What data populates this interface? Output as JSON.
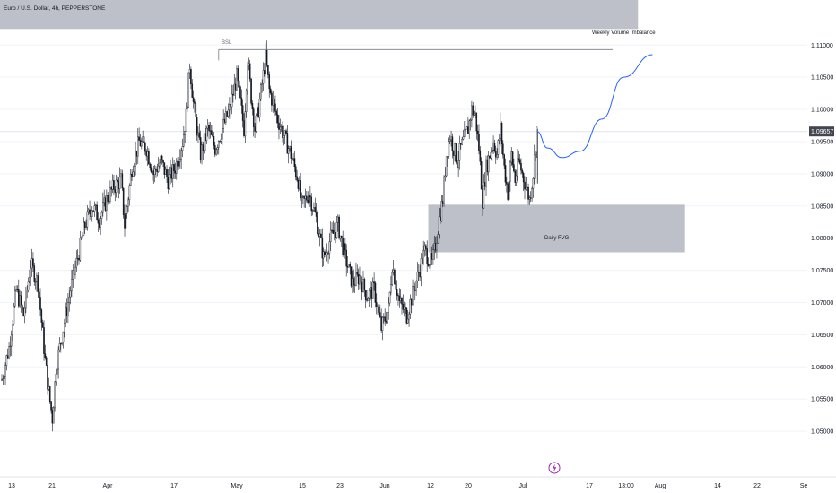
{
  "window": {
    "title": "Euro / U.S. Dollar, 4h, PEPPERSTONE"
  },
  "chart_data": {
    "type": "candlestick",
    "title": "Euro / U.S. Dollar, 4h, PEPPERSTONE",
    "ylim": [
      1.045,
      1.117
    ],
    "y_ticks": [
      "1.11000",
      "1.10500",
      "1.10000",
      "1.09500",
      "1.09000",
      "1.08500",
      "1.08000",
      "1.07500",
      "1.07000",
      "1.06500",
      "1.06000",
      "1.05500",
      "1.05000"
    ],
    "x_ticks": [
      "13",
      "21",
      "Apr",
      "17",
      "May",
      "15",
      "23",
      "Jun",
      "12",
      "20",
      "Jul",
      "17",
      "13:00",
      "Aug",
      "14",
      "22",
      "Se"
    ],
    "current_price": "1.09657",
    "current_price_value": 1.09657,
    "close_path": [
      {
        "d": 0,
        "c": 1.058
      },
      {
        "d": 2,
        "c": 1.063
      },
      {
        "d": 4,
        "c": 1.072
      },
      {
        "d": 6,
        "c": 1.068
      },
      {
        "d": 8,
        "c": 1.076
      },
      {
        "d": 10,
        "c": 1.073
      },
      {
        "d": 12,
        "c": 1.061
      },
      {
        "d": 13,
        "c": 1.056
      },
      {
        "d": 14,
        "c": 1.052
      },
      {
        "d": 15,
        "c": 1.06
      },
      {
        "d": 17,
        "c": 1.066
      },
      {
        "d": 19,
        "c": 1.072
      },
      {
        "d": 21,
        "c": 1.077
      },
      {
        "d": 23,
        "c": 1.082
      },
      {
        "d": 25,
        "c": 1.085
      },
      {
        "d": 27,
        "c": 1.083
      },
      {
        "d": 29,
        "c": 1.086
      },
      {
        "d": 31,
        "c": 1.088
      },
      {
        "d": 33,
        "c": 1.089
      },
      {
        "d": 34,
        "c": 1.082
      },
      {
        "d": 36,
        "c": 1.091
      },
      {
        "d": 38,
        "c": 1.095
      },
      {
        "d": 40,
        "c": 1.094
      },
      {
        "d": 42,
        "c": 1.09
      },
      {
        "d": 44,
        "c": 1.092
      },
      {
        "d": 46,
        "c": 1.089
      },
      {
        "d": 48,
        "c": 1.091
      },
      {
        "d": 50,
        "c": 1.095
      },
      {
        "d": 51,
        "c": 1.099
      },
      {
        "d": 52,
        "c": 1.107
      },
      {
        "d": 53,
        "c": 1.101
      },
      {
        "d": 54,
        "c": 1.097
      },
      {
        "d": 55,
        "c": 1.093
      },
      {
        "d": 57,
        "c": 1.097
      },
      {
        "d": 59,
        "c": 1.094
      },
      {
        "d": 61,
        "c": 1.097
      },
      {
        "d": 63,
        "c": 1.1
      },
      {
        "d": 65,
        "c": 1.105
      },
      {
        "d": 66,
        "c": 1.101
      },
      {
        "d": 67,
        "c": 1.097
      },
      {
        "d": 68,
        "c": 1.108
      },
      {
        "d": 69,
        "c": 1.102
      },
      {
        "d": 70,
        "c": 1.097
      },
      {
        "d": 71,
        "c": 1.1
      },
      {
        "d": 72,
        "c": 1.104
      },
      {
        "d": 73,
        "c": 1.108
      },
      {
        "d": 74,
        "c": 1.103
      },
      {
        "d": 76,
        "c": 1.099
      },
      {
        "d": 78,
        "c": 1.096
      },
      {
        "d": 80,
        "c": 1.093
      },
      {
        "d": 82,
        "c": 1.089
      },
      {
        "d": 83,
        "c": 1.085
      },
      {
        "d": 85,
        "c": 1.087
      },
      {
        "d": 87,
        "c": 1.083
      },
      {
        "d": 89,
        "c": 1.077
      },
      {
        "d": 91,
        "c": 1.08
      },
      {
        "d": 93,
        "c": 1.082
      },
      {
        "d": 95,
        "c": 1.077
      },
      {
        "d": 97,
        "c": 1.073
      },
      {
        "d": 99,
        "c": 1.074
      },
      {
        "d": 101,
        "c": 1.071
      },
      {
        "d": 103,
        "c": 1.072
      },
      {
        "d": 105,
        "c": 1.066
      },
      {
        "d": 107,
        "c": 1.069
      },
      {
        "d": 108,
        "c": 1.076
      },
      {
        "d": 110,
        "c": 1.07
      },
      {
        "d": 112,
        "c": 1.068
      },
      {
        "d": 113,
        "c": 1.07
      },
      {
        "d": 115,
        "c": 1.074
      },
      {
        "d": 117,
        "c": 1.078
      },
      {
        "d": 119,
        "c": 1.076
      },
      {
        "d": 120,
        "c": 1.079
      },
      {
        "d": 121,
        "c": 1.083
      },
      {
        "d": 122,
        "c": 1.086
      },
      {
        "d": 123,
        "c": 1.093
      },
      {
        "d": 124,
        "c": 1.096
      },
      {
        "d": 125,
        "c": 1.094
      },
      {
        "d": 126,
        "c": 1.092
      },
      {
        "d": 127,
        "c": 1.094
      },
      {
        "d": 129,
        "c": 1.097
      },
      {
        "d": 130,
        "c": 1.1
      },
      {
        "d": 131,
        "c": 1.099
      },
      {
        "d": 132,
        "c": 1.094
      },
      {
        "d": 133,
        "c": 1.086
      },
      {
        "d": 134,
        "c": 1.091
      },
      {
        "d": 136,
        "c": 1.095
      },
      {
        "d": 137,
        "c": 1.093
      },
      {
        "d": 138,
        "c": 1.097
      },
      {
        "d": 139,
        "c": 1.091
      },
      {
        "d": 140,
        "c": 1.087
      },
      {
        "d": 141,
        "c": 1.093
      },
      {
        "d": 142,
        "c": 1.089
      },
      {
        "d": 143,
        "c": 1.092
      },
      {
        "d": 144,
        "c": 1.09
      },
      {
        "d": 145,
        "c": 1.088
      },
      {
        "d": 146,
        "c": 1.086
      },
      {
        "d": 147,
        "c": 1.09
      },
      {
        "d": 148,
        "c": 1.097
      }
    ],
    "annotations": {
      "weekly_volume_imbalance": "Weekly Volume Imbalance",
      "bsl": "BSL",
      "daily_fvg": "Daily FVG"
    },
    "zones": [
      {
        "name": "Weekly Volume Imbalance",
        "y_top": 1.117,
        "y_bottom": 1.1125,
        "x_start": -5,
        "x_end": 176
      },
      {
        "name": "Daily FVG",
        "y_top": 1.0852,
        "y_bottom": 1.0778,
        "x_start": 118,
        "x_end": 189
      }
    ],
    "bsl_line": {
      "price": 1.1093,
      "x_start": 60,
      "x_end": 169
    },
    "projection": [
      {
        "d": 148,
        "p": 1.0966
      },
      {
        "d": 151,
        "p": 1.094
      },
      {
        "d": 155,
        "p": 1.0925
      },
      {
        "d": 160,
        "p": 1.0935
      },
      {
        "d": 166,
        "p": 1.0985
      },
      {
        "d": 172,
        "p": 1.105
      },
      {
        "d": 180,
        "p": 1.1085
      }
    ]
  },
  "time_axis": {
    "marker_icon": "lightning-icon"
  },
  "colors": {
    "candle": "#131722",
    "zone": "#b2b5be",
    "projection": "#2962ff",
    "price_tag_bg": "#434651",
    "price_tag_text": "#ffffff",
    "grid": "#f0f3fa",
    "axis_text": "#131722",
    "crosshair": "#e0e3eb",
    "marker": "#9c27b0"
  }
}
